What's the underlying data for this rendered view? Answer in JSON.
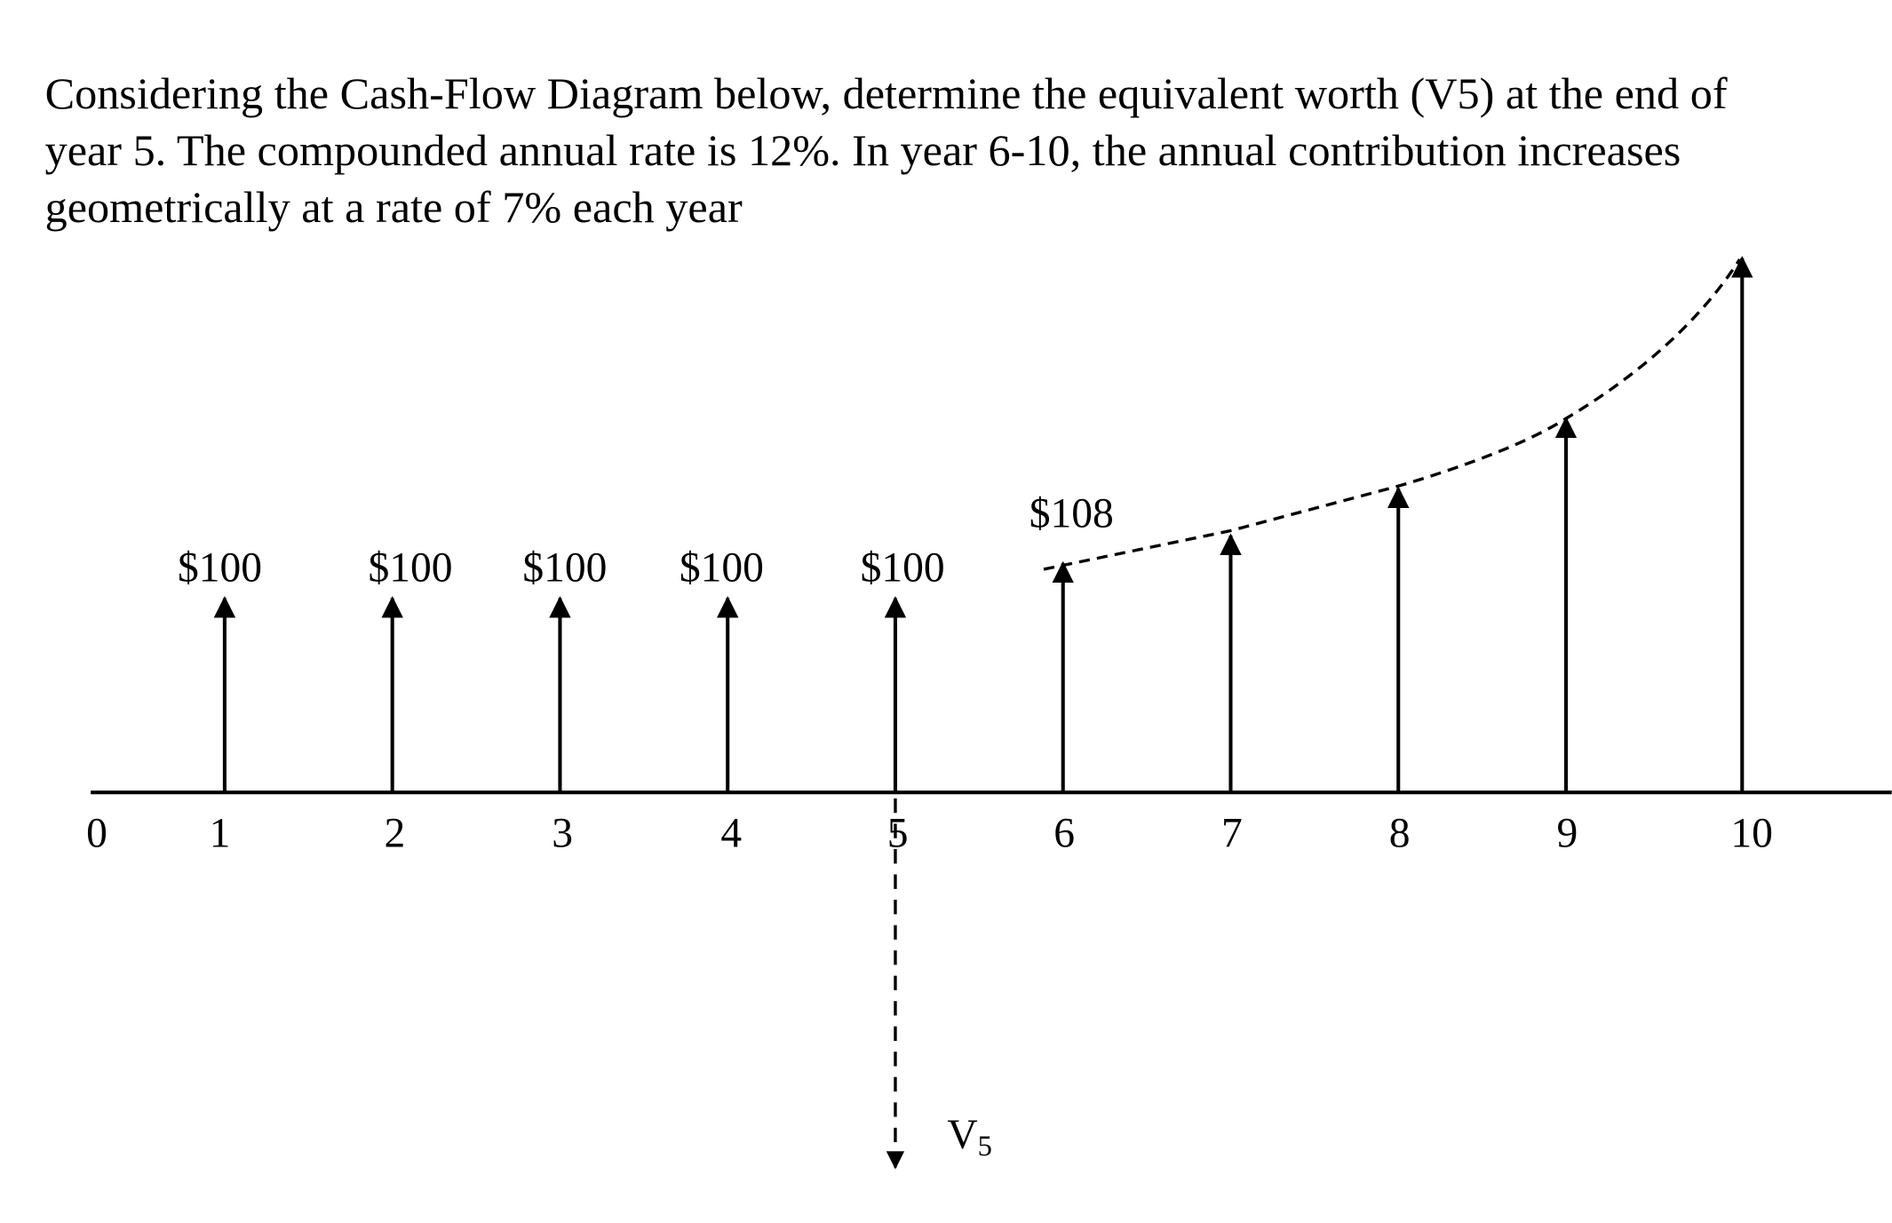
{
  "question": {
    "lines": [
      "Considering the Cash-Flow Diagram below, determine the equivalent worth (V5) at the end of",
      "year 5. The compounded annual rate is 12%. In year 6-10, the annual contribution increases",
      "geometrically at a rate of 7% each year"
    ]
  },
  "diagram": {
    "years": [
      "0",
      "1",
      "2",
      "3",
      "4",
      "5",
      "6",
      "7",
      "8",
      "9",
      "10"
    ],
    "uniform_labels": [
      "$100",
      "$100",
      "$100",
      "$100",
      "$100"
    ],
    "growth_label": "$108",
    "equivalent_label": {
      "base": "V",
      "sub": "5"
    }
  }
}
